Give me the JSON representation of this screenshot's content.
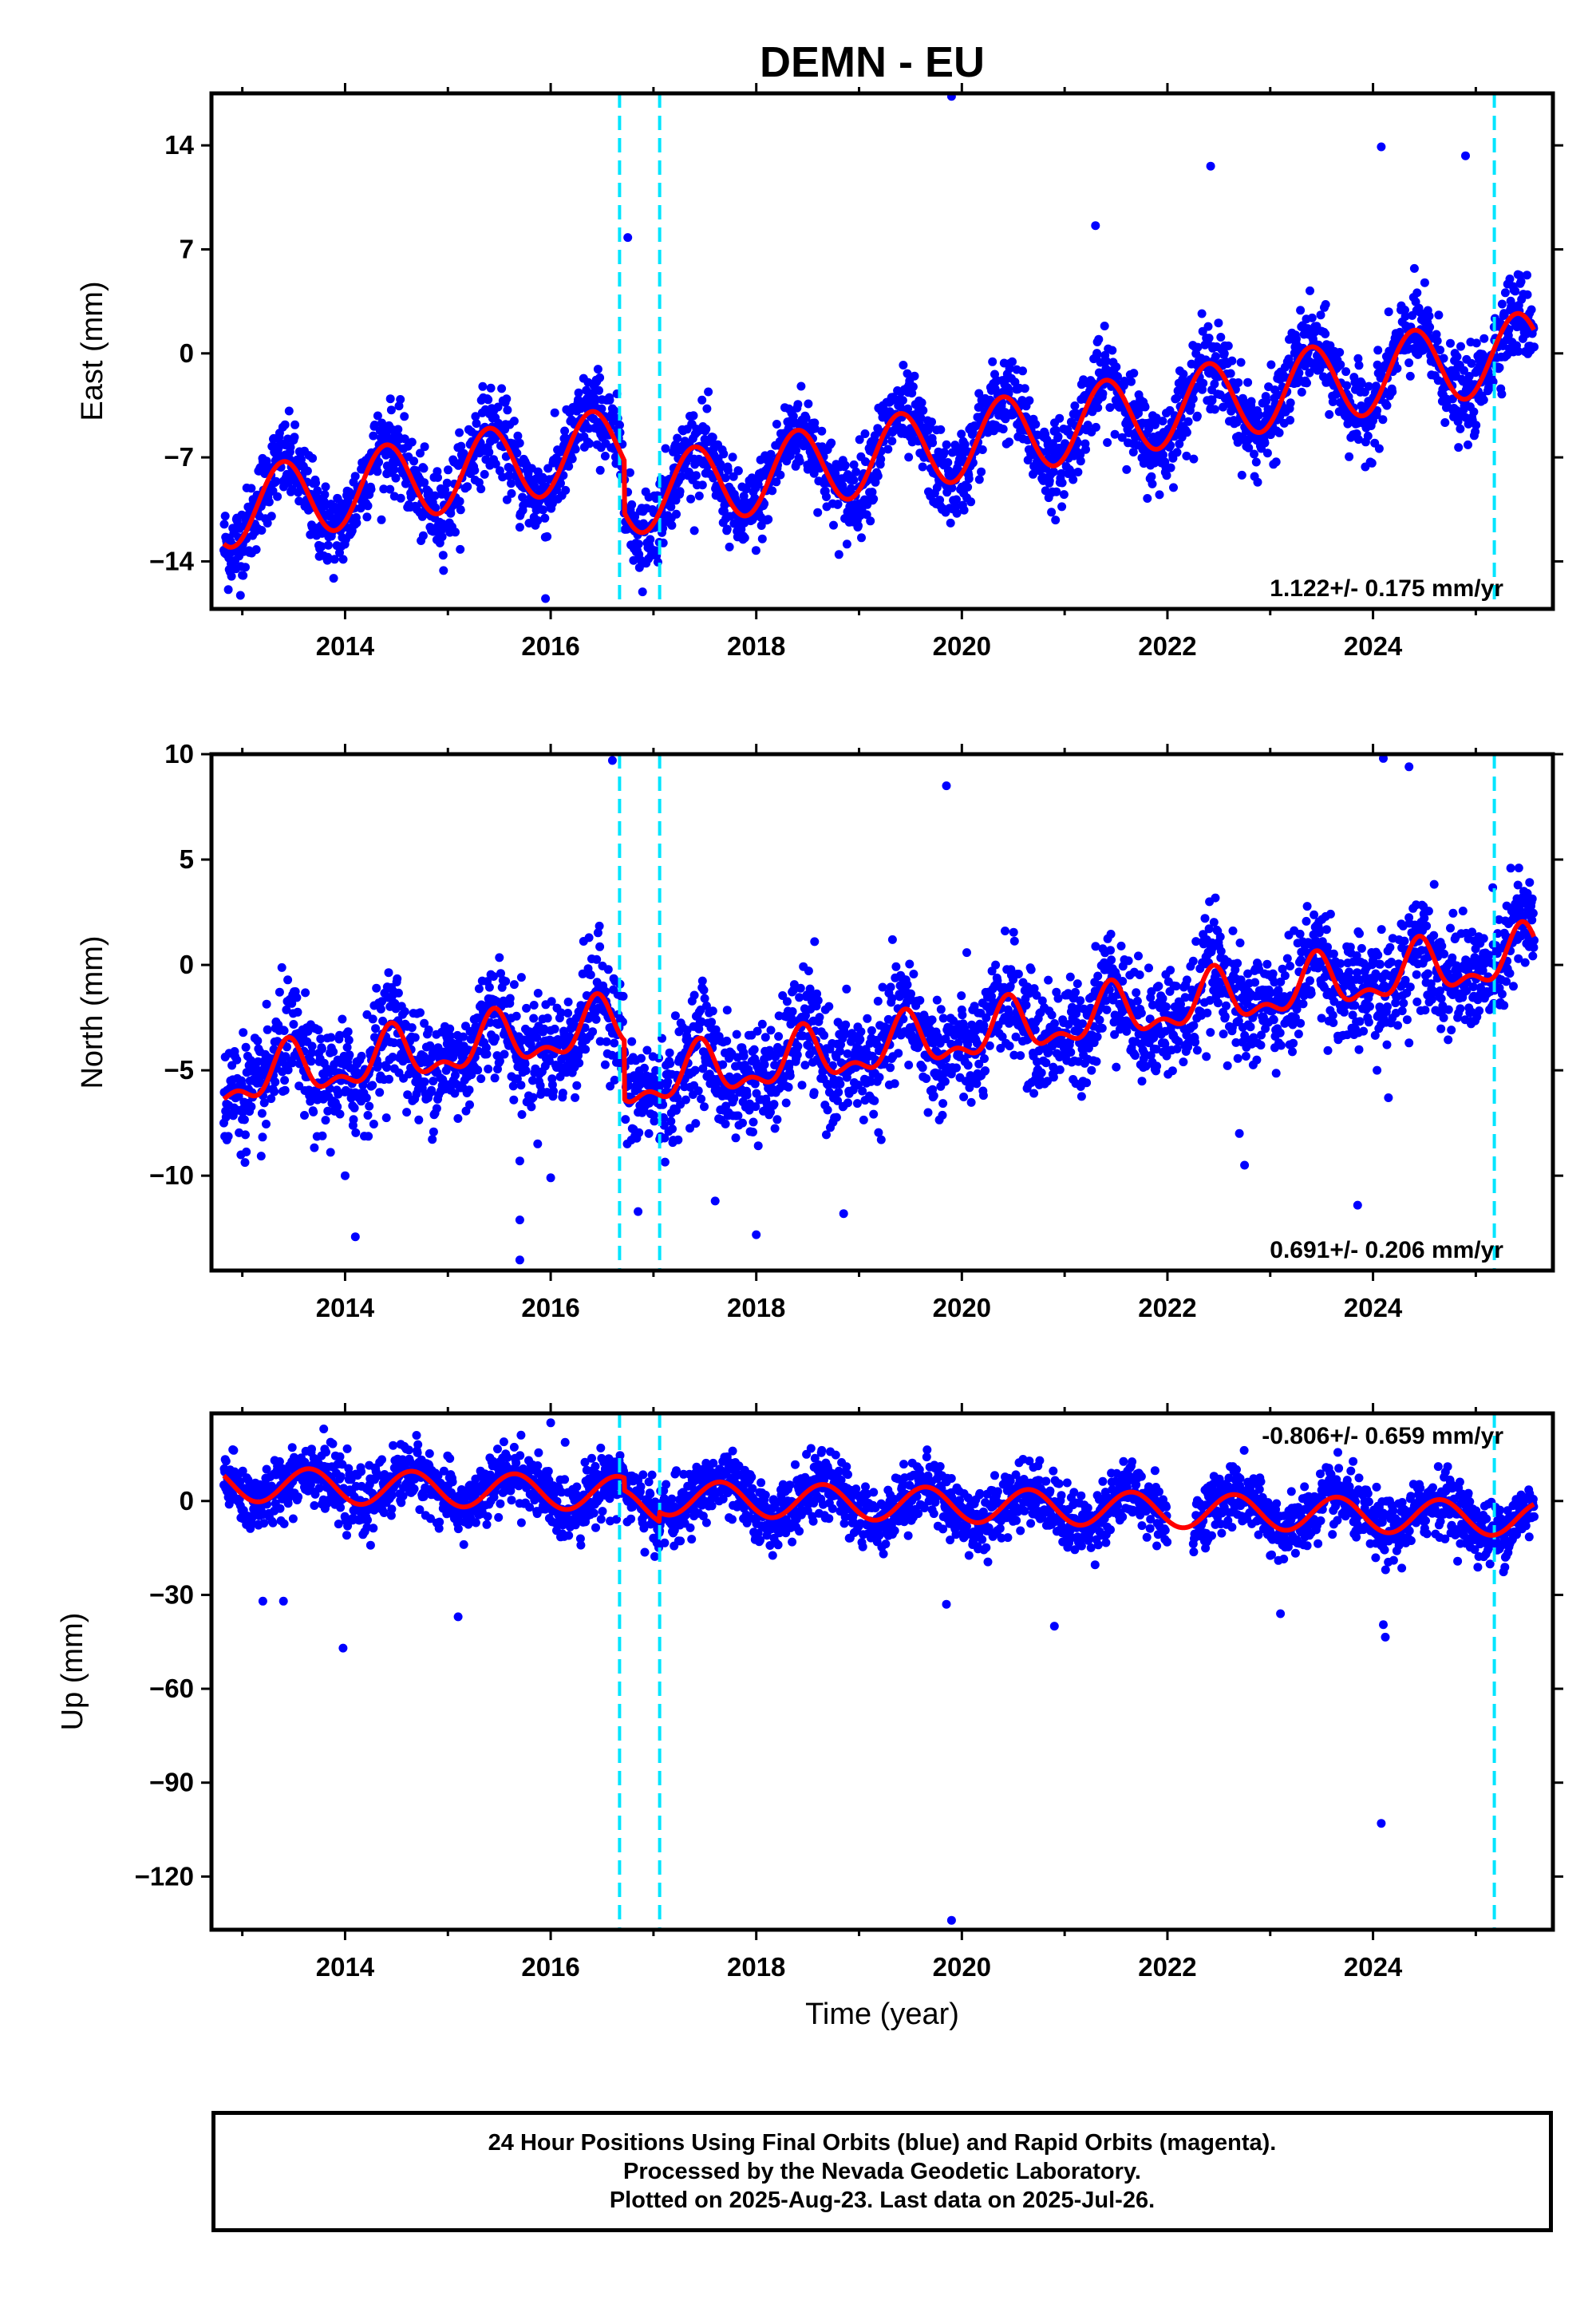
{
  "title": "DEMN - EU",
  "colors": {
    "points": "#0000ff",
    "model": "#ff0000",
    "breaks": "#00e5ff",
    "frame": "#000000"
  },
  "chart_data": [
    {
      "type": "scatter",
      "ylabel": "East (mm)",
      "xlim": [
        2012.7,
        2025.75
      ],
      "ylim": [
        -17.2,
        17.5
      ],
      "yticks": [
        14,
        7,
        0,
        -7,
        -14
      ],
      "ytick_labels": [
        "14",
        "7",
        "0",
        "−7",
        "−14"
      ],
      "xticks": [
        2014,
        2016,
        2018,
        2020,
        2022,
        2024
      ],
      "xtick_labels": [
        "2014",
        "2016",
        "2018",
        "2020",
        "2022",
        "2024"
      ],
      "rate_annotation": "1.122+/- 0.175 mm/yr",
      "model": {
        "trend": 1.122,
        "offset": -3.6,
        "amplitude": 2.6,
        "phase_year": 2013.4,
        "jumps": [
          [
            2016.72,
            -3.5
          ]
        ]
      },
      "scatter_sd": 1.4,
      "outliers": [
        [
          2019.9,
          17.3
        ],
        [
          2015.95,
          -16.5
        ],
        [
          2015.7,
          -11.7
        ],
        [
          2015.7,
          -8.8
        ],
        [
          2016.75,
          7.8
        ],
        [
          2022.42,
          12.6
        ],
        [
          2024.08,
          13.9
        ],
        [
          2024.9,
          13.3
        ],
        [
          2021.3,
          8.6
        ],
        [
          2021.9,
          -6.2
        ],
        [
          2018.95,
          -7.5
        ],
        [
          2017.1,
          -9.5
        ]
      ],
      "breaks": [
        2016.67,
        2017.06,
        2025.18
      ]
    },
    {
      "type": "scatter",
      "ylabel": "North (mm)",
      "xlim": [
        2012.7,
        2025.75
      ],
      "ylim": [
        -14.5,
        10.0
      ],
      "yticks": [
        10,
        5,
        0,
        -5,
        -10
      ],
      "ytick_labels": [
        "10",
        "5",
        "0",
        "−5",
        "−10"
      ],
      "xticks": [
        2014,
        2016,
        2018,
        2020,
        2022,
        2024
      ],
      "xtick_labels": [
        "2014",
        "2016",
        "2018",
        "2020",
        "2022",
        "2024"
      ],
      "rate_annotation": "0.691+/- 0.206 mm/yr",
      "model": {
        "trend": 0.691,
        "offset": -1.3,
        "amplitude": 1.1,
        "phase_year": 2013.45,
        "harmonic2": 0.6,
        "jumps": [
          [
            2016.72,
            -2.8
          ]
        ]
      },
      "scatter_sd": 1.3,
      "outliers": [
        [
          2016.6,
          9.7
        ],
        [
          2019.85,
          8.5
        ],
        [
          2024.1,
          9.8
        ],
        [
          2024.35,
          9.4
        ],
        [
          2015.7,
          -14.0
        ],
        [
          2014.1,
          -12.9
        ],
        [
          2015.7,
          -12.1
        ],
        [
          2016.85,
          -11.7
        ],
        [
          2017.6,
          -11.2
        ],
        [
          2018.0,
          -12.8
        ],
        [
          2018.85,
          -11.8
        ],
        [
          2023.85,
          -11.4
        ],
        [
          2012.85,
          -8.3
        ],
        [
          2015.7,
          -9.3
        ],
        [
          2022.75,
          -9.5
        ],
        [
          2022.7,
          -8.0
        ],
        [
          2024.15,
          -6.3
        ],
        [
          2024.35,
          -3.7
        ],
        [
          2014.0,
          -10.0
        ],
        [
          2016.0,
          -10.1
        ]
      ],
      "breaks": [
        2016.67,
        2017.06,
        2025.18
      ]
    },
    {
      "type": "scatter",
      "ylabel": "Up (mm)",
      "xlabel": "Time (year)",
      "xlim": [
        2012.7,
        2025.75
      ],
      "ylim": [
        -137,
        28
      ],
      "yticks": [
        0,
        -30,
        -60,
        -90,
        -120
      ],
      "ytick_labels": [
        "0",
        "−30",
        "−60",
        "−90",
        "−120"
      ],
      "xticks": [
        2014,
        2016,
        2018,
        2020,
        2022,
        2024
      ],
      "xtick_labels": [
        "2014",
        "2016",
        "2018",
        "2020",
        "2022",
        "2024"
      ],
      "rate_annotation": "-0.806+/- 0.659 mm/yr",
      "model": {
        "trend": -0.806,
        "offset": 0.5,
        "amplitude": 5.5,
        "phase_year": 2013.65,
        "jumps": [
          [
            2016.72,
            -4.0
          ],
          [
            2017.06,
            3.0
          ]
        ]
      },
      "scatter_sd": 5.0,
      "outliers": [
        [
          2019.9,
          -134.0
        ],
        [
          2024.08,
          -103.0
        ],
        [
          2013.98,
          -47.0
        ],
        [
          2024.1,
          -39.5
        ],
        [
          2024.12,
          -43.5
        ],
        [
          2023.1,
          -36.0
        ],
        [
          2020.9,
          -40.0
        ],
        [
          2015.1,
          -37.0
        ],
        [
          2019.85,
          -33.0
        ],
        [
          2016.0,
          25.0
        ],
        [
          2013.2,
          -32.0
        ],
        [
          2013.4,
          -32.0
        ]
      ],
      "breaks": [
        2016.67,
        2017.06,
        2025.18
      ]
    }
  ],
  "footer": {
    "line1": "24 Hour Positions Using Final Orbits (blue) and Rapid Orbits (magenta).",
    "line2": "Processed by the Nevada Geodetic Laboratory.",
    "line3": "Plotted on 2025-Aug-23. Last data on 2025-Jul-26."
  }
}
